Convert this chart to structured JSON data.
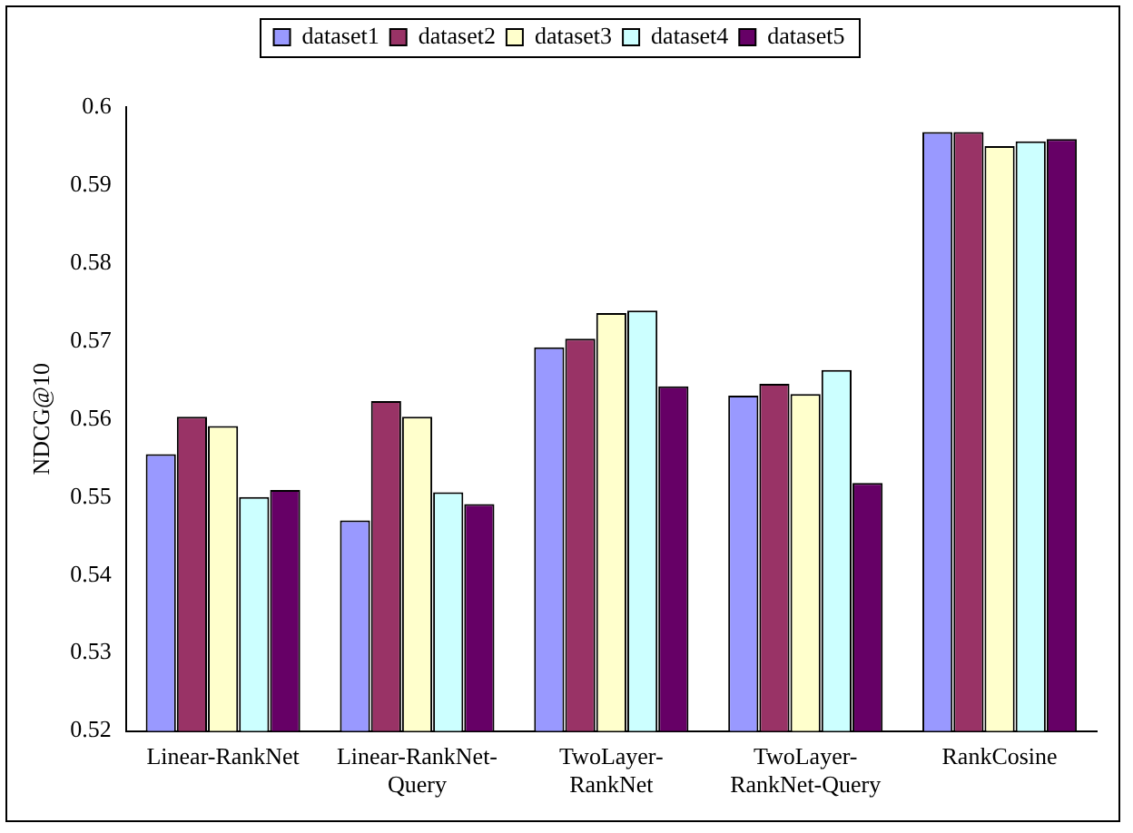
{
  "chart_data": {
    "type": "bar",
    "ylabel": "NDCG@10",
    "categories": [
      "Linear-RankNet",
      "Linear-RankNet-\nQuery",
      "TwoLayer-\nRankNet",
      "TwoLayer-\nRankNet-Query",
      "RankCosine"
    ],
    "series": [
      {
        "name": "dataset1",
        "color": "#9999ff",
        "values": [
          0.5555,
          0.547,
          0.5692,
          0.563,
          0.5968
        ]
      },
      {
        "name": "dataset2",
        "color": "#993366",
        "values": [
          0.5603,
          0.5623,
          0.5703,
          0.5645,
          0.5968
        ]
      },
      {
        "name": "dataset3",
        "color": "#ffffcc",
        "values": [
          0.5591,
          0.5603,
          0.5736,
          0.5632,
          0.595
        ]
      },
      {
        "name": "dataset4",
        "color": "#ccffff",
        "values": [
          0.55,
          0.5506,
          0.5739,
          0.5663,
          0.5956
        ]
      },
      {
        "name": "dataset5",
        "color": "#660066",
        "values": [
          0.5509,
          0.5491,
          0.5642,
          0.5518,
          0.5959
        ]
      }
    ],
    "ylim": [
      0.52,
      0.6
    ],
    "yticks": [
      0.52,
      0.53,
      0.54,
      0.55,
      0.56,
      0.57,
      0.58,
      0.59,
      0.6
    ],
    "grid": false,
    "legend": "top"
  }
}
